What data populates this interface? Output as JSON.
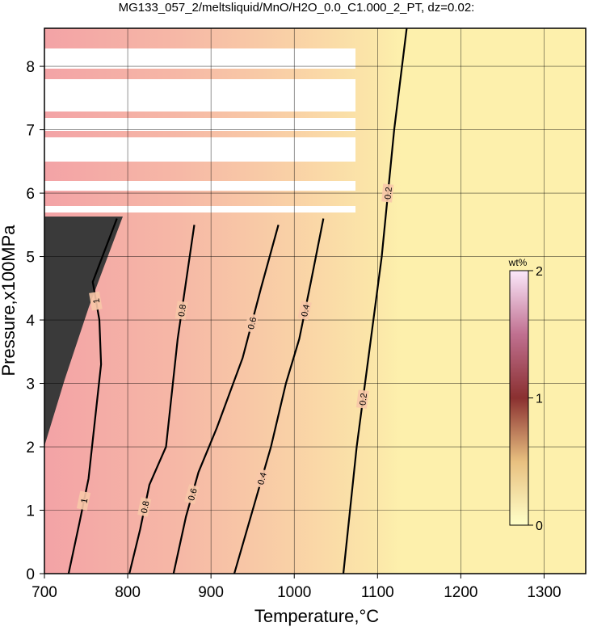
{
  "chart_data": {
    "type": "contour",
    "title": "MG133_057_2/meltsliquid/MnO/H2O_0.0_C1.000_2_PT, dz=0.02:",
    "x_label": "Temperature,°C",
    "y_label": "Pressure,x100MPa",
    "xlim": [
      700,
      1350
    ],
    "ylim": [
      0,
      8.6
    ],
    "xticks": [
      700,
      800,
      900,
      1000,
      1100,
      1200,
      1300
    ],
    "yticks": [
      0,
      1,
      2,
      3,
      4,
      5,
      6,
      7,
      8
    ],
    "grid": true,
    "contours": [
      {
        "level": 0.2,
        "x": [
          1059,
          1075,
          1090,
          1105,
          1120,
          1135
        ],
        "y": [
          0,
          2,
          3.5,
          5,
          7,
          8.6
        ]
      },
      {
        "level": 0.4,
        "x": [
          928,
          950,
          972,
          990,
          1006,
          1020,
          1035
        ],
        "y": [
          0,
          1,
          2,
          3,
          3.7,
          4.6,
          5.6
        ]
      },
      {
        "level": 0.6,
        "x": [
          855,
          870,
          885,
          907,
          938,
          960,
          981
        ],
        "y": [
          0,
          0.9,
          1.6,
          2.3,
          3.4,
          4.5,
          5.5
        ]
      },
      {
        "level": 0.8,
        "x": [
          802,
          815,
          826,
          846,
          860,
          870,
          880
        ],
        "y": [
          0,
          0.7,
          1.4,
          2,
          3.7,
          4.6,
          5.5
        ]
      },
      {
        "level": 1,
        "x": [
          729,
          742,
          753,
          768,
          766,
          758,
          787
        ],
        "y": [
          0,
          0.8,
          1.5,
          3.3,
          4,
          4.6,
          5.6
        ]
      }
    ],
    "colorbar": {
      "title": "wt%",
      "lim": [
        0,
        2
      ],
      "ticks": [
        0,
        1,
        2
      ]
    }
  }
}
